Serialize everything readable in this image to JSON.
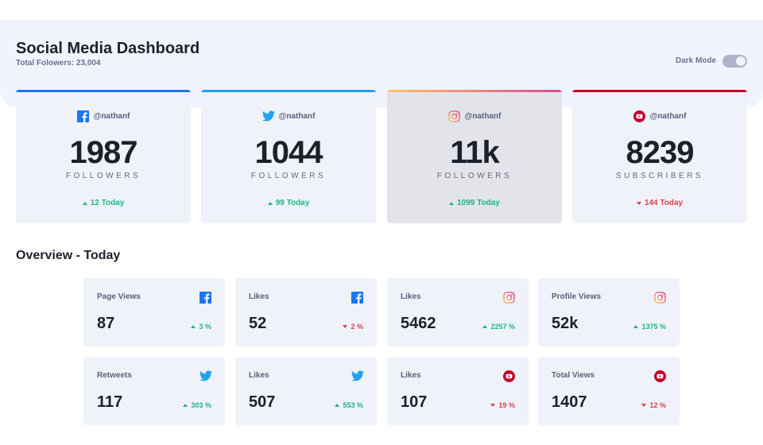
{
  "header": {
    "title": "Social Media Dashboard",
    "subtitle": "Total Folowers: 23,004",
    "dark_mode_label": "Dark Mode"
  },
  "colors": {
    "facebook": "#1877f2",
    "twitter": "#1da1f2",
    "instagram_gradient": [
      "#fdc468",
      "#df4996"
    ],
    "youtube": "#c4032b",
    "up": "#1db489",
    "down": "#dc414c"
  },
  "cards": [
    {
      "network": "facebook",
      "icon": "facebook-icon",
      "handle": "@nathanf",
      "count": "1987",
      "label": "FOLLOWERS",
      "today": "12 Today",
      "trend": "up"
    },
    {
      "network": "twitter",
      "icon": "twitter-icon",
      "handle": "@nathanf",
      "count": "1044",
      "label": "FOLLOWERS",
      "today": "99 Today",
      "trend": "up"
    },
    {
      "network": "instagram",
      "icon": "instagram-icon",
      "handle": "@nathanf",
      "count": "11k",
      "label": "FOLLOWERS",
      "today": "1099 Today",
      "trend": "up"
    },
    {
      "network": "youtube",
      "icon": "youtube-icon",
      "handle": "@nathanf",
      "count": "8239",
      "label": "SUBSCRIBERS",
      "today": "144 Today",
      "trend": "down"
    }
  ],
  "overview": {
    "title": "Overview - Today",
    "items": [
      {
        "label": "Page Views",
        "icon": "facebook-icon",
        "value": "87",
        "pct": "3 %",
        "trend": "up"
      },
      {
        "label": "Likes",
        "icon": "facebook-icon",
        "value": "52",
        "pct": "2 %",
        "trend": "down"
      },
      {
        "label": "Likes",
        "icon": "instagram-icon",
        "value": "5462",
        "pct": "2257 %",
        "trend": "up"
      },
      {
        "label": "Profile Views",
        "icon": "instagram-icon",
        "value": "52k",
        "pct": "1375 %",
        "trend": "up"
      },
      {
        "label": "Retweets",
        "icon": "twitter-icon",
        "value": "117",
        "pct": "303 %",
        "trend": "up"
      },
      {
        "label": "Likes",
        "icon": "twitter-icon",
        "value": "507",
        "pct": "553 %",
        "trend": "up"
      },
      {
        "label": "Likes",
        "icon": "youtube-icon",
        "value": "107",
        "pct": "19 %",
        "trend": "down"
      },
      {
        "label": "Total Views",
        "icon": "youtube-icon",
        "value": "1407",
        "pct": "12 %",
        "trend": "down"
      }
    ]
  }
}
